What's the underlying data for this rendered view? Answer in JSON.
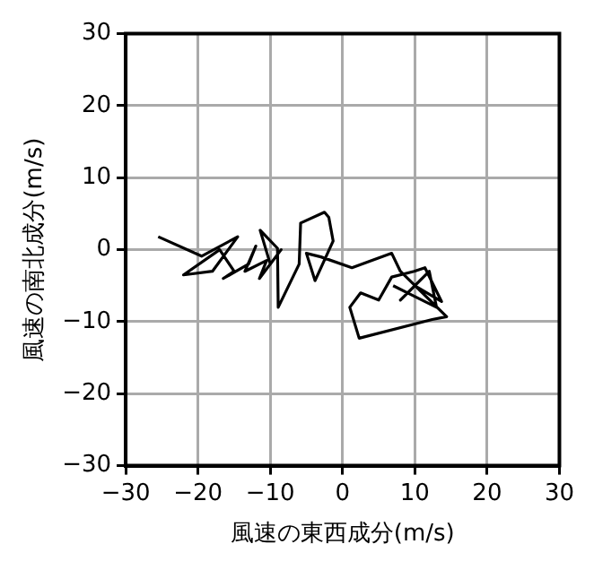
{
  "chart_data": {
    "type": "line",
    "xlabel": "風速の東西成分(m/s)",
    "ylabel": "風速の南北成分(m/s)",
    "series": [
      {
        "color": "#000000",
        "x": [
          -25.5,
          -19.5,
          -14.5,
          -18,
          -22,
          -17,
          -15,
          -16.5,
          -13,
          -12,
          -13.5,
          -10.5,
          -11.5,
          -8.5,
          -10,
          -11.4,
          -9,
          -8.9,
          -6,
          -5.8,
          -2.5,
          -1.9,
          -1.3,
          -3.8,
          -5,
          -3,
          1.3,
          4,
          6.8,
          8,
          14.4,
          12.4,
          2.3,
          1,
          2.5,
          5,
          6.8,
          9.9,
          11.4,
          13.7,
          10,
          8,
          11,
          9,
          12,
          13,
          10,
          7
        ],
        "values": [
          1.8,
          -0.9,
          1.8,
          -3,
          -3.5,
          0,
          -3,
          -4,
          -2,
          0.5,
          -3,
          -1.5,
          -4,
          0,
          -2,
          2.7,
          0.2,
          -8,
          -2,
          3.7,
          5.2,
          4.5,
          1.2,
          -4.3,
          -0.5,
          -1,
          -2.5,
          -1.5,
          -0.5,
          -3,
          -9.3,
          -9.7,
          -12.3,
          -8,
          -6,
          -7,
          -3.8,
          -3,
          -2.5,
          -7.2,
          -5,
          -7,
          -4,
          -6,
          -3,
          -8,
          -6.5,
          -5
        ]
      }
    ],
    "xlim": [
      -30,
      30
    ],
    "ylim": [
      -30,
      30
    ],
    "xticks": [
      -30,
      -20,
      -10,
      0,
      10,
      20,
      30
    ],
    "yticks": [
      -30,
      -20,
      -10,
      0,
      10,
      20,
      30
    ],
    "grid": true,
    "marker": "none",
    "line_style": "solid"
  }
}
